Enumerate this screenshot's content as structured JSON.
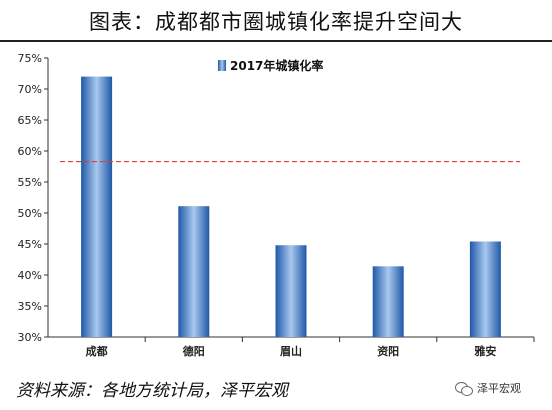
{
  "header": {
    "title": "图表：成都都市圈城镇化率提升空间大"
  },
  "footer": {
    "source": "资料来源：各地方统计局，泽平宏观",
    "watermark": "泽平宏观"
  },
  "chart_data": {
    "type": "bar",
    "categories": [
      "成都",
      "德阳",
      "眉山",
      "资阳",
      "雅安"
    ],
    "series": [
      {
        "name": "2017年城镇化率",
        "values": [
          72.0,
          51.1,
          44.8,
          41.4,
          45.4
        ]
      }
    ],
    "reference_line": {
      "value": 58.3,
      "style": "dashed",
      "color": "#e53935"
    },
    "ylim": [
      30,
      75
    ],
    "yticks": [
      "30%",
      "35%",
      "40%",
      "45%",
      "50%",
      "55%",
      "60%",
      "65%",
      "70%",
      "75%"
    ],
    "ytick_values": [
      30,
      35,
      40,
      45,
      50,
      55,
      60,
      65,
      70,
      75
    ],
    "legend_position": "top-center",
    "grid": false,
    "bar_color": "#2f6fc4"
  }
}
